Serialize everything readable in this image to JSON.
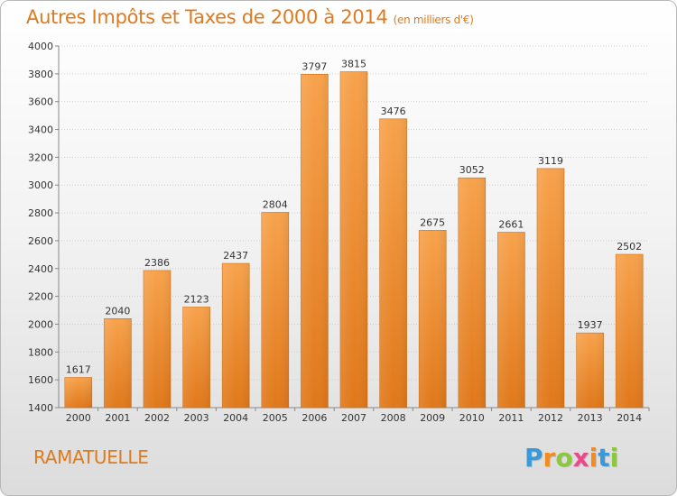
{
  "title": "Autres Impôts et Taxes de 2000 à 2014",
  "subtitle": "(en milliers d'€)",
  "commune": "RAMATUELLE",
  "logo": {
    "letters": [
      "P",
      "r",
      "o",
      "x",
      "i",
      "t",
      "i"
    ],
    "colors": [
      "#3a9ad9",
      "#f28c1e",
      "#8dc63f",
      "#e84a8a",
      "#f28c1e",
      "#3a9ad9",
      "#8dc63f"
    ]
  },
  "chart_data": {
    "type": "bar",
    "categories": [
      "2000",
      "2001",
      "2002",
      "2003",
      "2004",
      "2005",
      "2006",
      "2007",
      "2008",
      "2009",
      "2010",
      "2011",
      "2012",
      "2013",
      "2014"
    ],
    "values": [
      1617,
      2040,
      2386,
      2123,
      2437,
      2804,
      3797,
      3815,
      3476,
      2675,
      3052,
      2661,
      3119,
      1937,
      2502
    ],
    "ylim": [
      1400,
      4000
    ],
    "yticks": [
      1400,
      1600,
      1800,
      2000,
      2200,
      2400,
      2600,
      2800,
      3000,
      3200,
      3400,
      3600,
      3800,
      4000
    ],
    "grid": true,
    "bar_color": "#f08a2c"
  }
}
